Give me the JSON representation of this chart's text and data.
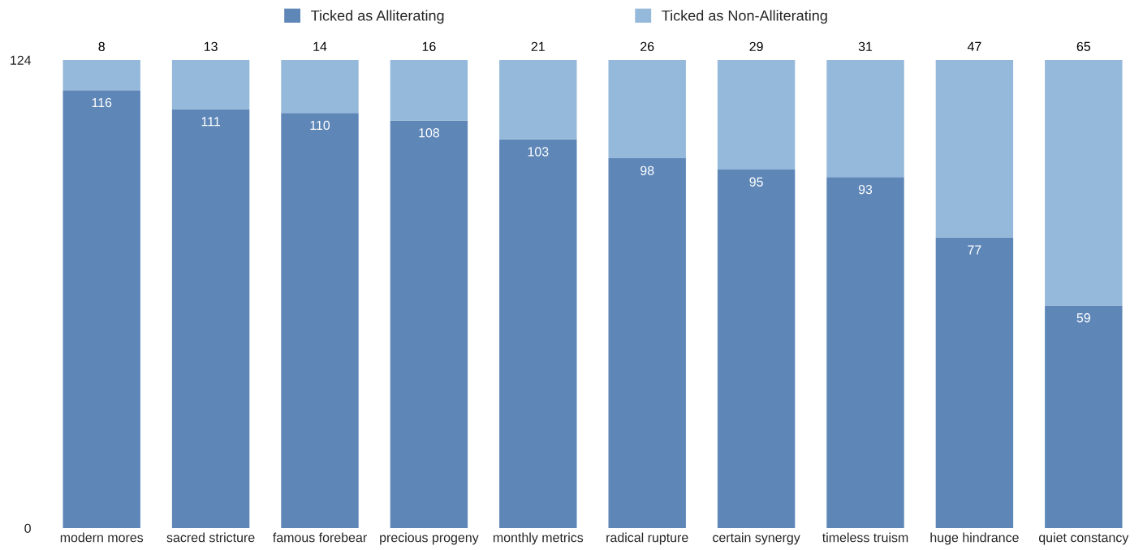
{
  "chart_data": {
    "type": "bar",
    "stacked": true,
    "categories": [
      "modern mores",
      "sacred stricture",
      "famous forebear",
      "precious progeny",
      "monthly metrics",
      "radical rupture",
      "certain synergy",
      "timeless truism",
      "huge hindrance",
      "quiet constancy"
    ],
    "series": [
      {
        "name": "Ticked as Alliterating",
        "color": "#5e87b8",
        "values": [
          116,
          111,
          110,
          108,
          103,
          98,
          95,
          93,
          77,
          59
        ]
      },
      {
        "name": "Ticked as Non-Alliterating",
        "color": "#95b9db",
        "values": [
          8,
          13,
          14,
          16,
          21,
          26,
          29,
          31,
          47,
          65
        ]
      }
    ],
    "ylim": [
      0,
      124
    ],
    "yticks": [
      0,
      124
    ],
    "grid": false,
    "legend": "top",
    "data_labels": true
  }
}
